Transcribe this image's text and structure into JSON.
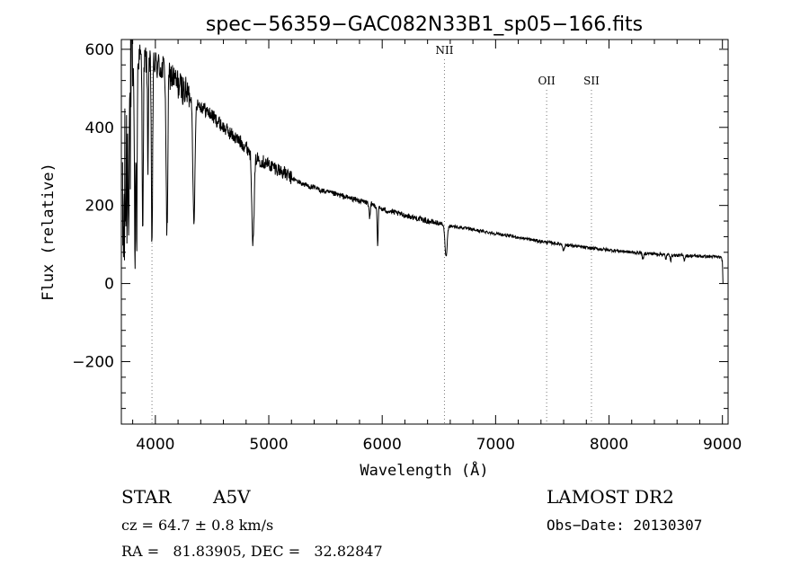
{
  "chart_data": {
    "type": "line",
    "title": "spec−56359−GAC082N33B1_sp05−166.fits",
    "xlabel": "Wavelength (Å)",
    "ylabel": "Flux (relative)",
    "xlim": [
      3700,
      9050
    ],
    "ylim": [
      -360,
      625
    ],
    "xticks": [
      4000,
      5000,
      6000,
      7000,
      8000,
      9000
    ],
    "xtick_labels": [
      "4000",
      "5000",
      "6000",
      "7000",
      "8000",
      "9000"
    ],
    "yticks": [
      -200,
      0,
      200,
      400,
      600
    ],
    "ytick_labels": [
      "−200",
      "0",
      "200",
      "400",
      "600"
    ],
    "grid": false,
    "line_markers": [
      {
        "name": "",
        "x": 3970
      },
      {
        "name": "NII",
        "x": 6549
      },
      {
        "name": "OII",
        "x": 7450
      },
      {
        "name": "SII",
        "x": 7845
      }
    ],
    "continuum": [
      [
        3710,
        80
      ],
      [
        3740,
        250
      ],
      [
        3800,
        520
      ],
      [
        3850,
        580
      ],
      [
        3900,
        575
      ],
      [
        3950,
        565
      ],
      [
        4000,
        560
      ],
      [
        4100,
        545
      ],
      [
        4200,
        510
      ],
      [
        4300,
        480
      ],
      [
        4400,
        455
      ],
      [
        4500,
        430
      ],
      [
        4600,
        400
      ],
      [
        4700,
        375
      ],
      [
        4800,
        350
      ],
      [
        4900,
        320
      ],
      [
        5000,
        305
      ],
      [
        5100,
        290
      ],
      [
        5200,
        270
      ],
      [
        5300,
        255
      ],
      [
        5400,
        245
      ],
      [
        5500,
        235
      ],
      [
        5600,
        228
      ],
      [
        5700,
        220
      ],
      [
        5800,
        212
      ],
      [
        5900,
        205
      ],
      [
        6000,
        190
      ],
      [
        6200,
        175
      ],
      [
        6400,
        160
      ],
      [
        6600,
        148
      ],
      [
        6800,
        138
      ],
      [
        7000,
        128
      ],
      [
        7200,
        118
      ],
      [
        7400,
        108
      ],
      [
        7600,
        100
      ],
      [
        7800,
        92
      ],
      [
        8000,
        86
      ],
      [
        8200,
        80
      ],
      [
        8400,
        76
      ],
      [
        8600,
        72
      ],
      [
        8800,
        70
      ],
      [
        8980,
        68
      ],
      [
        9000,
        60
      ],
      [
        9005,
        0
      ]
    ],
    "absorption_lines": [
      {
        "x": 3820,
        "depth": 500,
        "width": 6
      },
      {
        "x": 3835,
        "depth": 480,
        "width": 6
      },
      {
        "x": 3889,
        "depth": 430,
        "width": 7
      },
      {
        "x": 3934,
        "depth": 300,
        "width": 5
      },
      {
        "x": 3970,
        "depth": 460,
        "width": 8
      },
      {
        "x": 4102,
        "depth": 430,
        "width": 10
      },
      {
        "x": 4340,
        "depth": 330,
        "width": 12
      },
      {
        "x": 4861,
        "depth": 230,
        "width": 14
      },
      {
        "x": 5890,
        "depth": 40,
        "width": 8
      },
      {
        "x": 5960,
        "depth": 100,
        "width": 6
      },
      {
        "x": 6563,
        "depth": 80,
        "width": 14
      },
      {
        "x": 7600,
        "depth": 15,
        "width": 10
      },
      {
        "x": 8300,
        "depth": 18,
        "width": 8
      },
      {
        "x": 8500,
        "depth": 14,
        "width": 6
      },
      {
        "x": 8545,
        "depth": 14,
        "width": 6
      },
      {
        "x": 8665,
        "depth": 12,
        "width": 6
      }
    ],
    "noise": [
      {
        "from": 3700,
        "to": 3800,
        "amplitude": 260
      },
      {
        "from": 3800,
        "to": 4300,
        "amplitude": 40
      },
      {
        "from": 4300,
        "to": 5200,
        "amplitude": 18
      },
      {
        "from": 5200,
        "to": 6500,
        "amplitude": 7
      },
      {
        "from": 6500,
        "to": 9000,
        "amplitude": 4
      }
    ]
  },
  "footer": {
    "object_type": "STAR",
    "subclass": "A5V",
    "redshift": "cz =  64.7 ± 0.8 km/s",
    "coords": "RA =   81.83905, DEC =   32.82847",
    "survey": "LAMOST DR2",
    "obs_date": "Obs−Date: 20130307"
  }
}
